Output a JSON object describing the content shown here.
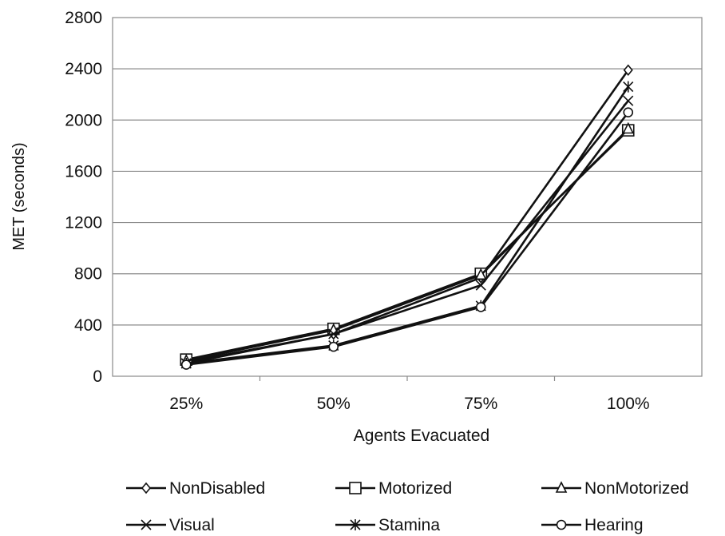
{
  "chart_data": {
    "type": "line",
    "title": "",
    "xlabel": "Agents Evacuated",
    "ylabel": "MET (seconds)",
    "categories": [
      "25%",
      "50%",
      "75%",
      "100%"
    ],
    "ylim": [
      0,
      2800
    ],
    "yticks": [
      0,
      400,
      800,
      1200,
      1600,
      2000,
      2400,
      2800
    ],
    "grid": "horizontal",
    "legend_position": "bottom",
    "series": [
      {
        "name": "NonDisabled",
        "marker": "diamond",
        "values": [
          110,
          330,
          770,
          2390
        ]
      },
      {
        "name": "Motorized",
        "marker": "square",
        "values": [
          130,
          370,
          800,
          1920
        ]
      },
      {
        "name": "NonMotorized",
        "marker": "triangle",
        "values": [
          120,
          360,
          790,
          1930
        ]
      },
      {
        "name": "Visual",
        "marker": "x",
        "values": [
          100,
          330,
          710,
          2150
        ]
      },
      {
        "name": "Stamina",
        "marker": "asterisk",
        "values": [
          100,
          240,
          550,
          2260
        ]
      },
      {
        "name": "Hearing",
        "marker": "circle",
        "values": [
          90,
          230,
          540,
          2060
        ]
      }
    ],
    "colors": {
      "line": "#111111",
      "grid": "#8a8a8a",
      "axis": "#8a8a8a"
    }
  }
}
